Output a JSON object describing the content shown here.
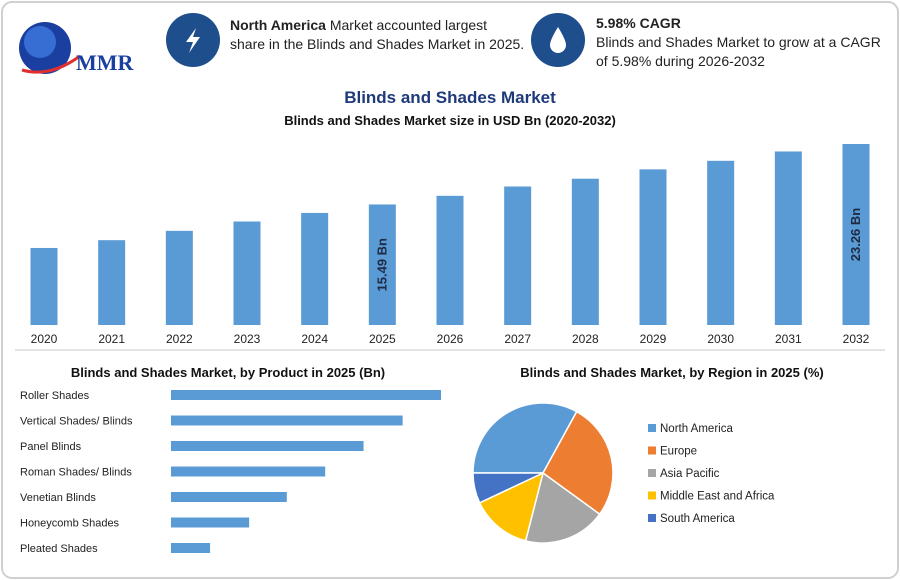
{
  "header": {
    "logo": "MMR",
    "info": [
      {
        "bold": "North America",
        "text": "Market accounted largest share in the Blinds and Shades Market in 2025."
      },
      {
        "bold": "5.98% CAGR",
        "text": "Blinds and Shades Market to grow at a CAGR of 5.98% during 2026-2032"
      }
    ]
  },
  "chart_data": [
    {
      "type": "bar",
      "title": "Blinds and Shades Market",
      "subtitle": "Blinds and Shades Market size in USD Bn (2020-2032)",
      "categories": [
        "2020",
        "2021",
        "2022",
        "2023",
        "2024",
        "2025",
        "2026",
        "2027",
        "2028",
        "2029",
        "2030",
        "2031",
        "2032"
      ],
      "values": [
        9.9,
        10.9,
        12.1,
        13.3,
        14.4,
        15.49,
        16.6,
        17.8,
        18.8,
        20.0,
        21.1,
        22.3,
        23.26
      ],
      "value_labels": [
        null,
        null,
        null,
        null,
        null,
        "15.49 Bn",
        null,
        null,
        null,
        null,
        null,
        null,
        "23.26 Bn"
      ],
      "color": "#5b9bd5"
    },
    {
      "type": "hbar",
      "title": "Blinds and Shades Market, by Product in 2025 (Bn)",
      "categories": [
        "Roller Shades",
        "Vertical Shades/ Blinds",
        "Panel Blinds",
        "Roman Shades/ Blinds",
        "Venetian Blinds",
        "Honeycomb Shades",
        "Pleated Shades"
      ],
      "values": [
        3.87,
        3.32,
        2.76,
        2.21,
        1.66,
        1.12,
        0.56
      ],
      "color": "#5b9bd5"
    },
    {
      "type": "pie",
      "title": "Blinds and Shades Market, by Region in 2025 (%)",
      "categories": [
        "North America",
        "Europe",
        "Asia Pacific",
        "Middle East and Africa",
        "South America"
      ],
      "values": [
        33,
        27,
        19,
        14,
        7
      ],
      "colors": [
        "#5b9bd5",
        "#ed7d31",
        "#a5a5a5",
        "#ffc000",
        "#4472c4"
      ],
      "legend": "right"
    }
  ]
}
